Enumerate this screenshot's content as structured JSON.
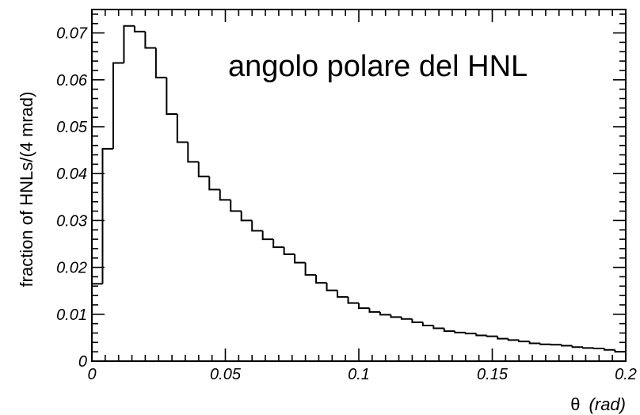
{
  "chart_data": {
    "type": "histogram",
    "title": "",
    "annotation": "angolo polare del HNL",
    "xlabel": {
      "symbol": "θ",
      "unit": "(rad)"
    },
    "ylabel": "fraction of HNLs/(4 mrad)",
    "xlim": [
      0,
      0.2
    ],
    "ylim": [
      0,
      0.075
    ],
    "x_ticks": [
      {
        "value": 0,
        "label": "0"
      },
      {
        "value": 0.05,
        "label": "0.05"
      },
      {
        "value": 0.1,
        "label": "0.1"
      },
      {
        "value": 0.15,
        "label": "0.15"
      },
      {
        "value": 0.2,
        "label": "0.2"
      }
    ],
    "y_ticks": [
      {
        "value": 0,
        "label": "0"
      },
      {
        "value": 0.01,
        "label": "0.01"
      },
      {
        "value": 0.02,
        "label": "0.02"
      },
      {
        "value": 0.03,
        "label": "0.03"
      },
      {
        "value": 0.04,
        "label": "0.04"
      },
      {
        "value": 0.05,
        "label": "0.05"
      },
      {
        "value": 0.06,
        "label": "0.06"
      },
      {
        "value": 0.07,
        "label": "0.07"
      }
    ],
    "bin_width": 0.004,
    "bin_start": 0,
    "values": [
      0.0165,
      0.0453,
      0.0636,
      0.0715,
      0.0703,
      0.0668,
      0.0605,
      0.0527,
      0.0467,
      0.0425,
      0.0394,
      0.0366,
      0.0344,
      0.032,
      0.03,
      0.0278,
      0.026,
      0.0243,
      0.0228,
      0.021,
      0.0184,
      0.0167,
      0.0151,
      0.0137,
      0.0124,
      0.0113,
      0.0105,
      0.0099,
      0.0094,
      0.009,
      0.0083,
      0.0076,
      0.007,
      0.0064,
      0.0061,
      0.0059,
      0.0055,
      0.0053,
      0.0048,
      0.0045,
      0.0042,
      0.0038,
      0.0036,
      0.0035,
      0.0033,
      0.003,
      0.0028,
      0.0027,
      0.0024,
      0.002
    ],
    "grid": false,
    "legend": "none",
    "colors": {
      "line": "#000000",
      "axes": "#000000",
      "background": "#ffffff"
    }
  }
}
